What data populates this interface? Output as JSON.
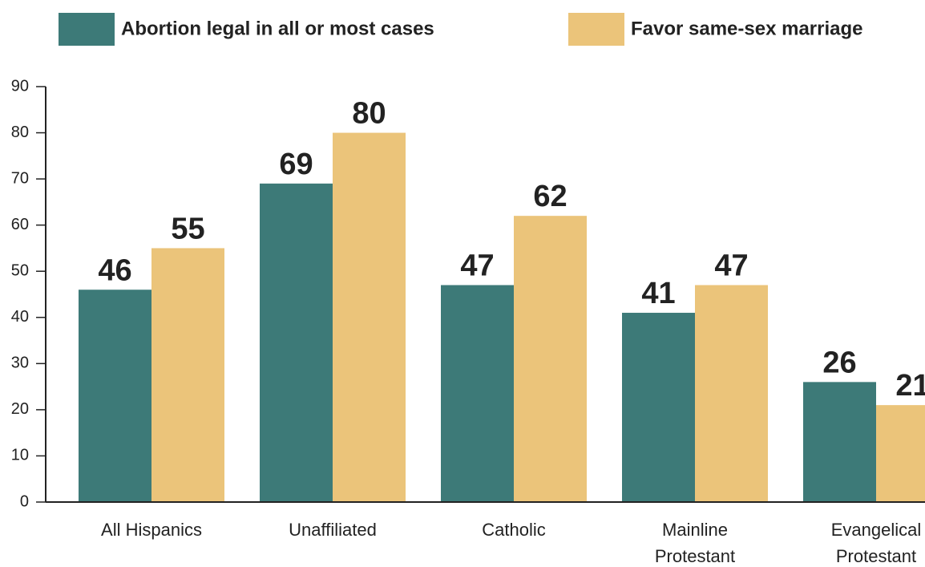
{
  "chart_data": {
    "type": "bar",
    "categories": [
      "All Hispanics",
      "Unaffiliated",
      "Catholic",
      "Mainline Protestant",
      "Evangelical Protestant"
    ],
    "series": [
      {
        "name": "Abortion legal in all or most cases",
        "color": "#3d7a78",
        "values": [
          46,
          69,
          47,
          41,
          26
        ]
      },
      {
        "name": "Favor same-sex marriage",
        "color": "#ebc47a",
        "values": [
          55,
          80,
          62,
          47,
          21
        ]
      }
    ],
    "ylim": [
      0,
      90
    ],
    "yticks": [
      0,
      10,
      20,
      30,
      40,
      50,
      60,
      70,
      80,
      90
    ]
  }
}
